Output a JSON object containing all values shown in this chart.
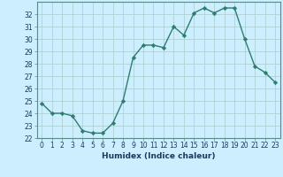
{
  "x": [
    0,
    1,
    2,
    3,
    4,
    5,
    6,
    7,
    8,
    9,
    10,
    11,
    12,
    13,
    14,
    15,
    16,
    17,
    18,
    19,
    20,
    21,
    22,
    23
  ],
  "y": [
    24.8,
    24.0,
    24.0,
    23.8,
    22.6,
    22.4,
    22.4,
    23.2,
    25.0,
    28.5,
    29.5,
    29.5,
    29.3,
    31.0,
    30.3,
    32.1,
    32.5,
    32.1,
    32.5,
    32.5,
    30.0,
    27.8,
    27.3,
    26.5
  ],
  "line_color": "#2e7d6e",
  "marker": "D",
  "marker_size": 2.2,
  "bg_color": "#cceeff",
  "grid_color": "#aacccc",
  "xlabel": "Humidex (Indice chaleur)",
  "xlim": [
    -0.5,
    23.5
  ],
  "ylim": [
    22,
    33
  ],
  "yticks": [
    22,
    23,
    24,
    25,
    26,
    27,
    28,
    29,
    30,
    31,
    32
  ],
  "xticks": [
    0,
    1,
    2,
    3,
    4,
    5,
    6,
    7,
    8,
    9,
    10,
    11,
    12,
    13,
    14,
    15,
    16,
    17,
    18,
    19,
    20,
    21,
    22,
    23
  ],
  "tick_label_fontsize": 5.5,
  "xlabel_fontsize": 6.5,
  "linewidth": 1.0
}
